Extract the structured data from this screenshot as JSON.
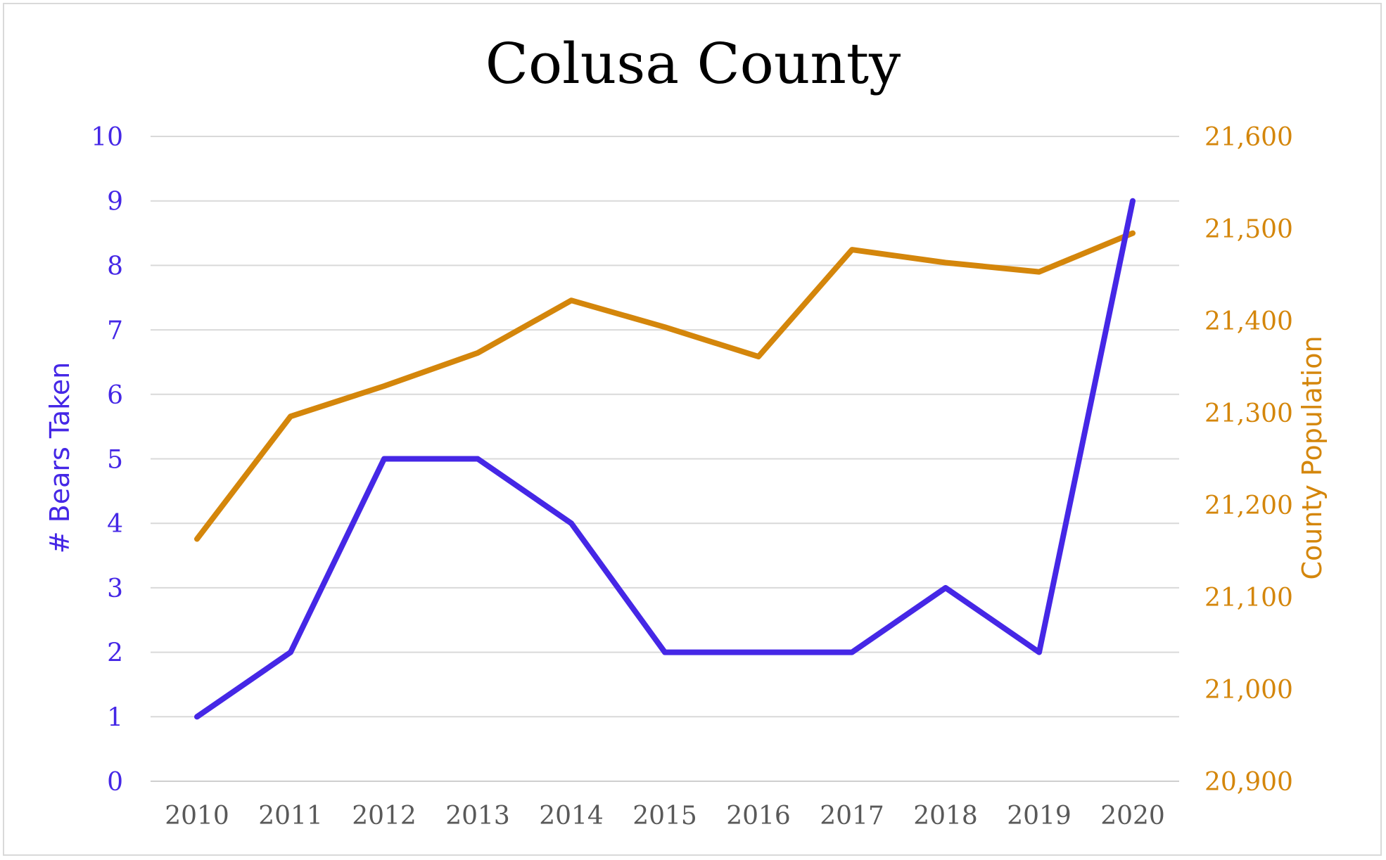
{
  "chart_data": {
    "type": "line",
    "title": "Colusa County",
    "categories": [
      "2010",
      "2011",
      "2012",
      "2013",
      "2014",
      "2015",
      "2016",
      "2017",
      "2018",
      "2019",
      "2020"
    ],
    "series": [
      {
        "name": "# Bears Taken",
        "axis": "left",
        "color": "#4527e6",
        "values": [
          1,
          2,
          5,
          5,
          4,
          2,
          2,
          2,
          3,
          2,
          9
        ]
      },
      {
        "name": "County Population",
        "axis": "right",
        "color": "#d4860b",
        "values": [
          21163,
          21296,
          21329,
          21365,
          21422,
          21393,
          21361,
          21477,
          21463,
          21453,
          21495
        ]
      }
    ],
    "ylabel": "# Bears Taken",
    "ylabel_right": "County Population",
    "ylim": [
      0,
      10
    ],
    "ylim_right": [
      20900,
      21600
    ],
    "yticks": [
      "0",
      "1",
      "2",
      "3",
      "4",
      "5",
      "6",
      "7",
      "8",
      "9",
      "10"
    ],
    "yticks_right": [
      "20,900",
      "21,000",
      "21,100",
      "21,200",
      "21,300",
      "21,400",
      "21,500",
      "21,600"
    ],
    "grid": true,
    "legend": "none"
  }
}
